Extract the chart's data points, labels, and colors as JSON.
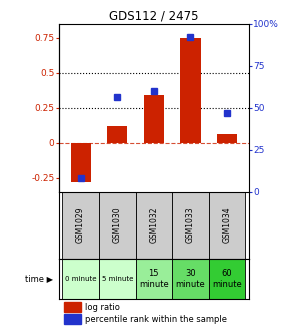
{
  "title": "GDS112 / 2475",
  "samples": [
    "GSM1029",
    "GSM1030",
    "GSM1032",
    "GSM1033",
    "GSM1034"
  ],
  "time_labels": [
    "0 minute",
    "5 minute",
    "15\nminute",
    "30\nminute",
    "60\nminute"
  ],
  "time_colors": [
    "#ccffcc",
    "#ccffcc",
    "#99ee99",
    "#66dd66",
    "#33cc33"
  ],
  "log_ratio": [
    -0.28,
    0.12,
    0.34,
    0.75,
    0.06
  ],
  "percentile": [
    0.08,
    0.56,
    0.6,
    0.92,
    0.47
  ],
  "bar_color": "#cc2200",
  "dot_color": "#2233cc",
  "ylim_left": [
    -0.35,
    0.85
  ],
  "ylim_right": [
    0.0,
    1.0
  ],
  "yticks_left": [
    -0.25,
    0,
    0.25,
    0.5,
    0.75
  ],
  "ytick_labels_left": [
    "-0.25",
    "0",
    "0.25",
    "0.5",
    "0.75"
  ],
  "yticks_right": [
    0.0,
    0.25,
    0.5,
    0.75,
    1.0
  ],
  "ytick_labels_right": [
    "0",
    "25",
    "50",
    "75",
    "100%"
  ],
  "hlines": [
    0.25,
    0.5
  ],
  "zero_line": 0,
  "sample_bg_color": "#cccccc",
  "legend_log_ratio": "log ratio",
  "legend_percentile": "percentile rank within the sample",
  "bar_width": 0.55
}
